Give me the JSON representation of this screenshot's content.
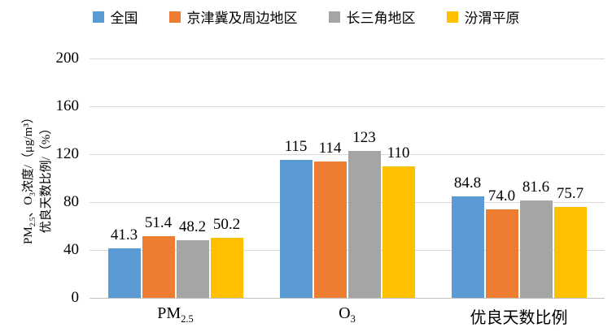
{
  "chart_data": {
    "type": "bar",
    "title": "",
    "categories": [
      "PM2.5",
      "O3",
      "优良天数比例"
    ],
    "categories_rich": [
      [
        {
          "t": "PM"
        },
        {
          "t": "2.5",
          "sub": true
        }
      ],
      [
        {
          "t": "O"
        },
        {
          "t": "3",
          "sub": true
        }
      ],
      [
        {
          "t": "优良天数比例"
        }
      ]
    ],
    "series": [
      {
        "name": "全国",
        "color": "#5B9BD5",
        "values": [
          41.3,
          115,
          84.8
        ],
        "labels": [
          "41.3",
          "115",
          "84.8"
        ]
      },
      {
        "name": "京津冀及周边地区",
        "color": "#ED7D31",
        "values": [
          51.4,
          114,
          74.0
        ],
        "labels": [
          "51.4",
          "114",
          "74.0"
        ]
      },
      {
        "name": "长三角地区",
        "color": "#A5A5A5",
        "values": [
          48.2,
          123,
          81.6
        ],
        "labels": [
          "48.2",
          "123",
          "81.6"
        ]
      },
      {
        "name": "汾渭平原",
        "color": "#FFC000",
        "values": [
          50.2,
          110,
          75.7
        ],
        "labels": [
          "50.2",
          "110",
          "75.7"
        ]
      }
    ],
    "ylabel": "PM2.5、O3浓度/（μg/m³） 优良天数比例/（%）",
    "ylabel_lines_rich": [
      [
        {
          "t": "PM"
        },
        {
          "t": "2.5",
          "sub": true
        },
        {
          "t": "、O"
        },
        {
          "t": "3",
          "sub": true
        },
        {
          "t": "浓度/（μg/m³）"
        }
      ],
      [
        {
          "t": "优良天数比例/（%）"
        }
      ]
    ],
    "xlabel": "",
    "yticks": [
      "0",
      "40",
      "80",
      "120",
      "160",
      "200"
    ],
    "ylim": [
      0,
      200
    ],
    "grid": true,
    "legend_position": "top",
    "grid_color": "#D9D9D9",
    "axis_color": "#BFBFBF",
    "text_color": "#000000"
  }
}
